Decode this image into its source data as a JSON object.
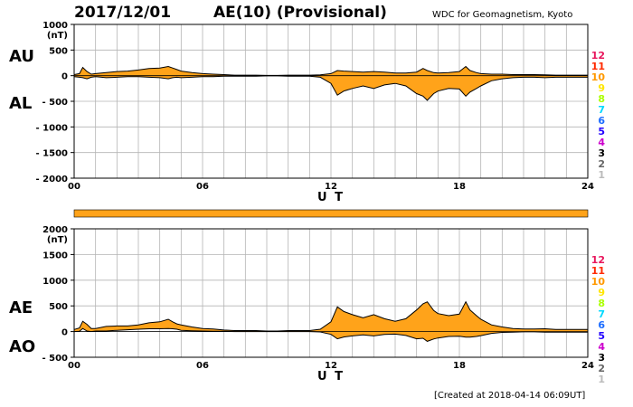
{
  "header": {
    "date": "2017/12/01",
    "title": "AE(10) (Provisional)",
    "source": "WDC for Geomagnetism, Kyoto"
  },
  "footer": {
    "created": "[Created at 2018-04-14 06:09UT]"
  },
  "colors": {
    "fill": "#ffa31a",
    "grid": "#b4b4b4",
    "ink": "#000000",
    "bar": "#ffa31a"
  },
  "station_legend": [
    {
      "label": "12",
      "color": "#e8175d"
    },
    {
      "label": "11",
      "color": "#ff2a00"
    },
    {
      "label": "10",
      "color": "#ff9900"
    },
    {
      "label": "9",
      "color": "#ffe600"
    },
    {
      "label": "8",
      "color": "#aaff00"
    },
    {
      "label": "7",
      "color": "#00d9ff"
    },
    {
      "label": "6",
      "color": "#1b6cff"
    },
    {
      "label": "5",
      "color": "#2200ff"
    },
    {
      "label": "4",
      "color": "#cc00cc"
    },
    {
      "label": "3",
      "color": "#000000"
    },
    {
      "label": "2",
      "color": "#666666"
    },
    {
      "label": "1",
      "color": "#bbbbbb"
    }
  ],
  "chart_data": [
    {
      "type": "area",
      "xlabel": "U T",
      "y_unit": "(nT)",
      "xlim": [
        0,
        24
      ],
      "ylim": [
        -2000,
        1000
      ],
      "xticks": [
        "00",
        "06",
        "12",
        "18",
        "24"
      ],
      "yticks": [
        "1000",
        "500",
        "0",
        "- 500",
        "- 1000",
        "- 1500",
        "- 2000"
      ],
      "grid": true,
      "series": [
        {
          "name": "AU",
          "x": [
            0,
            0.25,
            0.4,
            0.6,
            0.8,
            1,
            1.5,
            2,
            2.5,
            3,
            3.5,
            4,
            4.4,
            4.6,
            4.8,
            5,
            5.5,
            6,
            6.5,
            7,
            7.5,
            8,
            8.5,
            9,
            9.5,
            10,
            10.5,
            11,
            11.5,
            12,
            12.3,
            12.6,
            13,
            13.5,
            14,
            14.5,
            15,
            15.5,
            16,
            16.3,
            16.5,
            16.8,
            17,
            17.5,
            18,
            18.3,
            18.5,
            18.8,
            19,
            19.5,
            20,
            20.5,
            21,
            21.5,
            22,
            22.5,
            23,
            23.5,
            24
          ],
          "values": [
            20,
            40,
            160,
            80,
            30,
            40,
            60,
            80,
            90,
            110,
            140,
            150,
            180,
            150,
            120,
            90,
            60,
            40,
            30,
            20,
            10,
            10,
            10,
            5,
            5,
            10,
            10,
            10,
            15,
            40,
            100,
            90,
            80,
            70,
            80,
            70,
            50,
            50,
            70,
            140,
            100,
            60,
            50,
            60,
            80,
            180,
            100,
            60,
            40,
            30,
            30,
            20,
            20,
            20,
            15,
            10,
            10,
            10,
            10
          ]
        },
        {
          "name": "AL",
          "x": [
            0,
            0.25,
            0.4,
            0.6,
            0.8,
            1,
            1.5,
            2,
            2.5,
            3,
            3.5,
            4,
            4.4,
            4.6,
            4.8,
            5,
            5.5,
            6,
            6.5,
            7,
            7.5,
            8,
            8.5,
            9,
            9.5,
            10,
            10.5,
            11,
            11.5,
            12,
            12.3,
            12.6,
            13,
            13.5,
            14,
            14.5,
            15,
            15.5,
            16,
            16.3,
            16.5,
            16.8,
            17,
            17.5,
            18,
            18.3,
            18.5,
            18.8,
            19,
            19.5,
            20,
            20.5,
            21,
            21.5,
            22,
            22.5,
            23,
            23.5,
            24
          ],
          "values": [
            -20,
            -30,
            -40,
            -60,
            -30,
            -20,
            -40,
            -30,
            -20,
            -20,
            -30,
            -40,
            -60,
            -40,
            -30,
            -40,
            -30,
            -20,
            -20,
            -10,
            -10,
            -10,
            -10,
            -5,
            -5,
            -10,
            -10,
            -10,
            -30,
            -150,
            -380,
            -300,
            -250,
            -200,
            -250,
            -180,
            -150,
            -200,
            -350,
            -400,
            -480,
            -350,
            -300,
            -250,
            -260,
            -400,
            -320,
            -250,
            -200,
            -100,
            -60,
            -40,
            -30,
            -30,
            -40,
            -30,
            -30,
            -30,
            -30
          ]
        }
      ]
    },
    {
      "type": "area",
      "xlabel": "U T",
      "y_unit": "(nT)",
      "xlim": [
        0,
        24
      ],
      "ylim": [
        -500,
        2000
      ],
      "xticks": [
        "00",
        "06",
        "12",
        "18",
        "24"
      ],
      "yticks": [
        "2000",
        "1500",
        "1000",
        "500",
        "0",
        "- 500"
      ],
      "grid": true,
      "series": [
        {
          "name": "AE",
          "x": [
            0,
            0.25,
            0.4,
            0.6,
            0.8,
            1,
            1.5,
            2,
            2.5,
            3,
            3.5,
            4,
            4.4,
            4.6,
            4.8,
            5,
            5.5,
            6,
            6.5,
            7,
            7.5,
            8,
            8.5,
            9,
            9.5,
            10,
            10.5,
            11,
            11.5,
            12,
            12.3,
            12.6,
            13,
            13.5,
            14,
            14.5,
            15,
            15.5,
            16,
            16.3,
            16.5,
            16.8,
            17,
            17.5,
            18,
            18.3,
            18.5,
            18.8,
            19,
            19.5,
            20,
            20.5,
            21,
            21.5,
            22,
            22.5,
            23,
            23.5,
            24
          ],
          "values": [
            40,
            70,
            200,
            140,
            60,
            60,
            100,
            110,
            110,
            130,
            170,
            190,
            240,
            190,
            150,
            130,
            90,
            60,
            50,
            30,
            20,
            20,
            20,
            10,
            10,
            20,
            20,
            20,
            45,
            190,
            480,
            390,
            330,
            270,
            330,
            250,
            200,
            250,
            420,
            540,
            580,
            410,
            350,
            310,
            340,
            580,
            420,
            310,
            240,
            130,
            90,
            60,
            50,
            50,
            55,
            40,
            40,
            40,
            40
          ]
        },
        {
          "name": "AO",
          "x": [
            0,
            0.25,
            0.4,
            0.6,
            0.8,
            1,
            1.5,
            2,
            2.5,
            3,
            3.5,
            4,
            4.4,
            4.6,
            4.8,
            5,
            5.5,
            6,
            6.5,
            7,
            7.5,
            8,
            8.5,
            9,
            9.5,
            10,
            10.5,
            11,
            11.5,
            12,
            12.3,
            12.6,
            13,
            13.5,
            14,
            14.5,
            15,
            15.5,
            16,
            16.3,
            16.5,
            16.8,
            17,
            17.5,
            18,
            18.3,
            18.5,
            18.8,
            19,
            19.5,
            20,
            20.5,
            21,
            21.5,
            22,
            22.5,
            23,
            23.5,
            24
          ],
          "values": [
            0,
            5,
            60,
            10,
            0,
            10,
            10,
            25,
            35,
            45,
            55,
            55,
            60,
            55,
            45,
            25,
            15,
            10,
            5,
            5,
            0,
            0,
            0,
            0,
            0,
            0,
            0,
            0,
            -7,
            -55,
            -140,
            -105,
            -85,
            -65,
            -85,
            -55,
            -50,
            -75,
            -140,
            -130,
            -190,
            -145,
            -125,
            -95,
            -90,
            -110,
            -110,
            -95,
            -80,
            -35,
            -15,
            -10,
            -5,
            -5,
            -12,
            -10,
            -10,
            -10,
            -10
          ]
        }
      ]
    }
  ]
}
